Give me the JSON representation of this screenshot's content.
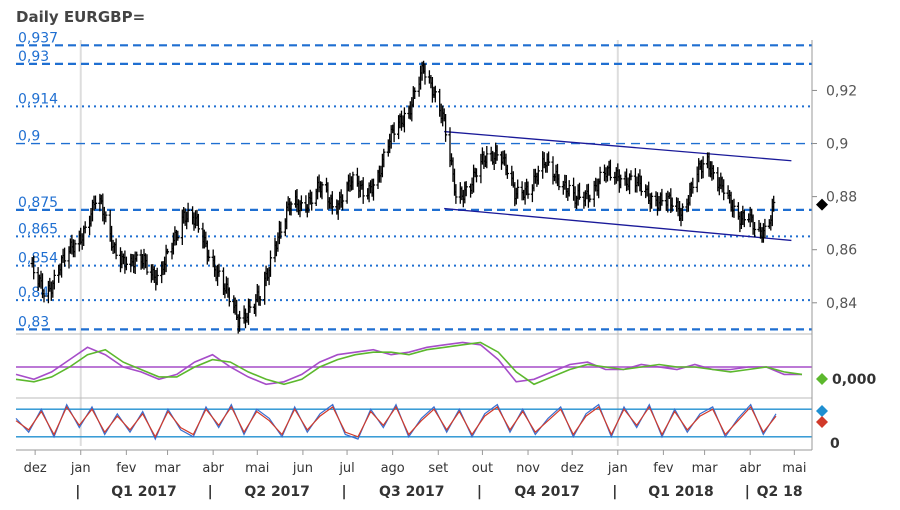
{
  "chart_data": {
    "type": "line",
    "title": "Daily EURGBP=",
    "main_panel": {
      "y_axis_ticks": [
        "0,92",
        "0,9",
        "0,88",
        "0,86",
        "0,84"
      ],
      "y_axis_values": [
        0.92,
        0.9,
        0.88,
        0.86,
        0.84
      ],
      "ylim": [
        0.829,
        0.939
      ],
      "last_price": 0.877,
      "series": [
        {
          "name": "",
          "style": "ohlc-bars",
          "color": "#000000",
          "x": [
            "2016-12-01",
            "2016-12-10",
            "2016-12-20",
            "2017-01-01",
            "2017-01-08",
            "2017-01-14",
            "2017-01-25",
            "2017-02-05",
            "2017-02-15",
            "2017-02-25",
            "2017-03-06",
            "2017-03-14",
            "2017-03-22",
            "2017-04-01",
            "2017-04-10",
            "2017-04-20",
            "2017-04-28",
            "2017-05-06",
            "2017-05-15",
            "2017-05-25",
            "2017-06-03",
            "2017-06-14",
            "2017-06-24",
            "2017-07-05",
            "2017-07-15",
            "2017-07-25",
            "2017-08-05",
            "2017-08-15",
            "2017-08-24",
            "2017-08-30",
            "2017-09-06",
            "2017-09-15",
            "2017-09-25",
            "2017-10-05",
            "2017-10-15",
            "2017-10-25",
            "2017-11-05",
            "2017-11-15",
            "2017-11-25",
            "2017-12-05",
            "2017-12-15",
            "2017-12-25",
            "2018-01-05",
            "2018-01-15",
            "2018-01-25",
            "2018-02-05",
            "2018-02-15",
            "2018-02-25",
            "2018-03-05",
            "2018-03-15",
            "2018-03-25",
            "2018-04-02",
            "2018-04-08",
            "2018-04-14",
            "2018-04-19"
          ],
          "values": [
            0.852,
            0.842,
            0.855,
            0.862,
            0.872,
            0.88,
            0.862,
            0.853,
            0.857,
            0.848,
            0.862,
            0.874,
            0.87,
            0.858,
            0.846,
            0.834,
            0.838,
            0.842,
            0.863,
            0.876,
            0.877,
            0.883,
            0.876,
            0.885,
            0.882,
            0.888,
            0.908,
            0.913,
            0.928,
            0.922,
            0.91,
            0.88,
            0.885,
            0.894,
            0.898,
            0.88,
            0.885,
            0.892,
            0.887,
            0.878,
            0.882,
            0.888,
            0.888,
            0.885,
            0.88,
            0.878,
            0.874,
            0.888,
            0.892,
            0.885,
            0.87,
            0.875,
            0.866,
            0.865,
            0.877
          ]
        }
      ],
      "horizontal_levels": [
        {
          "value": 0.937,
          "label": "0,937",
          "style": "dashed-bold"
        },
        {
          "value": 0.93,
          "label": "0,93",
          "style": "dashed-bold"
        },
        {
          "value": 0.914,
          "label": "0,914",
          "style": "dotted"
        },
        {
          "value": 0.9,
          "label": "0,9",
          "style": "dashed"
        },
        {
          "value": 0.875,
          "label": "0,875",
          "style": "dashed-bold"
        },
        {
          "value": 0.865,
          "label": "0,865",
          "style": "dotted"
        },
        {
          "value": 0.854,
          "label": "0,854",
          "style": "dotted"
        },
        {
          "value": 0.841,
          "label": "0,84",
          "style": "dotted"
        },
        {
          "value": 0.83,
          "label": "0,83",
          "style": "dashed-bold"
        }
      ],
      "trend_channel": [
        {
          "from": {
            "x": "2017-09-07",
            "y": 0.9045
          },
          "to": {
            "x": "2018-05-01",
            "y": 0.8935
          }
        },
        {
          "from": {
            "x": "2017-09-07",
            "y": 0.8755
          },
          "to": {
            "x": "2018-05-01",
            "y": 0.8635
          }
        }
      ],
      "level_color": "#1f6fd1",
      "trend_color": "#1a1a99"
    },
    "oscillator_1": {
      "ylim": [
        -1,
        1
      ],
      "zero_line": 0,
      "zero_label": "0,000",
      "zero_color": "#a64dc9",
      "series": [
        {
          "name": "",
          "color": "#a64dc9",
          "values": [
            -0.3,
            -0.5,
            -0.2,
            0.3,
            0.8,
            0.5,
            0.0,
            -0.2,
            -0.5,
            -0.3,
            0.2,
            0.5,
            0.0,
            -0.4,
            -0.7,
            -0.6,
            -0.3,
            0.2,
            0.5,
            0.6,
            0.7,
            0.5,
            0.6,
            0.8,
            0.9,
            1.0,
            0.9,
            0.3,
            -0.6,
            -0.5,
            -0.2,
            0.1,
            0.2,
            -0.1,
            -0.1,
            0.1,
            0.0,
            -0.1,
            0.1,
            -0.1,
            -0.1,
            0.0,
            0.0,
            -0.3,
            -0.3
          ]
        },
        {
          "name": "",
          "color": "#5cb82d",
          "values": [
            -0.5,
            -0.6,
            -0.4,
            0.0,
            0.5,
            0.7,
            0.2,
            -0.1,
            -0.4,
            -0.4,
            0.0,
            0.3,
            0.2,
            -0.2,
            -0.5,
            -0.7,
            -0.5,
            0.0,
            0.3,
            0.5,
            0.6,
            0.6,
            0.5,
            0.7,
            0.8,
            0.9,
            1.0,
            0.6,
            -0.2,
            -0.7,
            -0.4,
            -0.1,
            0.1,
            0.0,
            -0.1,
            0.0,
            0.1,
            0.0,
            0.0,
            -0.1,
            -0.2,
            -0.1,
            0.0,
            -0.2,
            -0.3
          ]
        }
      ],
      "markers": [
        {
          "color": "#5cb82d",
          "shape": "diamond"
        }
      ]
    },
    "oscillator_2": {
      "ylim": [
        0,
        100
      ],
      "levels": [
        20,
        80
      ],
      "zero_label": "0",
      "level_color": "#1f8fd1",
      "series": [
        {
          "name": "",
          "color": "#3a6fd1",
          "values": [
            60,
            30,
            80,
            20,
            90,
            40,
            85,
            25,
            70,
            30,
            75,
            15,
            80,
            35,
            20,
            85,
            40,
            90,
            25,
            80,
            60,
            20,
            85,
            30,
            70,
            90,
            25,
            15,
            80,
            40,
            90,
            20,
            60,
            85,
            30,
            80,
            20,
            70,
            90,
            30,
            80,
            25,
            60,
            85,
            20,
            70,
            90,
            20,
            85,
            40,
            90,
            20,
            80,
            30,
            70,
            85,
            20,
            60,
            90,
            25,
            70
          ]
        },
        {
          "name": "",
          "color": "#d13a2a",
          "values": [
            55,
            35,
            75,
            25,
            85,
            45,
            80,
            30,
            65,
            35,
            70,
            20,
            75,
            40,
            25,
            80,
            45,
            85,
            30,
            75,
            55,
            25,
            80,
            35,
            65,
            85,
            30,
            20,
            75,
            45,
            85,
            25,
            55,
            80,
            35,
            75,
            25,
            65,
            85,
            35,
            75,
            30,
            55,
            80,
            25,
            65,
            85,
            25,
            80,
            45,
            85,
            25,
            75,
            35,
            65,
            80,
            25,
            55,
            85,
            30,
            65
          ]
        }
      ],
      "markers": [
        {
          "color": "#1f8fd1",
          "shape": "diamond"
        },
        {
          "color": "#d13a2a",
          "shape": "diamond"
        }
      ]
    },
    "x_axis": {
      "months": [
        {
          "label": "dez",
          "date": "2016-12-03"
        },
        {
          "label": "jan",
          "date": "2017-01-03"
        },
        {
          "label": "fev",
          "date": "2017-02-03"
        },
        {
          "label": "mar",
          "date": "2017-03-03"
        },
        {
          "label": "abr",
          "date": "2017-04-03"
        },
        {
          "label": "mai",
          "date": "2017-05-03"
        },
        {
          "label": "jun",
          "date": "2017-06-03"
        },
        {
          "label": "jul",
          "date": "2017-07-03"
        },
        {
          "label": "ago",
          "date": "2017-08-03"
        },
        {
          "label": "set",
          "date": "2017-09-03"
        },
        {
          "label": "out",
          "date": "2017-10-03"
        },
        {
          "label": "nov",
          "date": "2017-11-03"
        },
        {
          "label": "dez",
          "date": "2017-12-03"
        },
        {
          "label": "jan",
          "date": "2018-01-03"
        },
        {
          "label": "fev",
          "date": "2018-02-03"
        },
        {
          "label": "mar",
          "date": "2018-03-03"
        },
        {
          "label": "abr",
          "date": "2018-04-03"
        },
        {
          "label": "mai",
          "date": "2018-05-03"
        }
      ],
      "quarters": [
        {
          "label": "Q1 2017",
          "start": "2017-01-01",
          "end": "2017-04-01"
        },
        {
          "label": "Q2 2017",
          "start": "2017-04-01",
          "end": "2017-07-01"
        },
        {
          "label": "Q3 2017",
          "start": "2017-07-01",
          "end": "2017-10-01"
        },
        {
          "label": "Q4 2017",
          "start": "2017-10-01",
          "end": "2018-01-01"
        },
        {
          "label": "Q1 2018",
          "start": "2018-01-01",
          "end": "2018-04-01"
        },
        {
          "label": "Q2 18",
          "start": "2018-04-01",
          "end": "2018-05-15"
        }
      ],
      "quarter_separator": "|",
      "gridline_months": [
        "2017-01-03",
        "2018-01-03"
      ]
    }
  }
}
